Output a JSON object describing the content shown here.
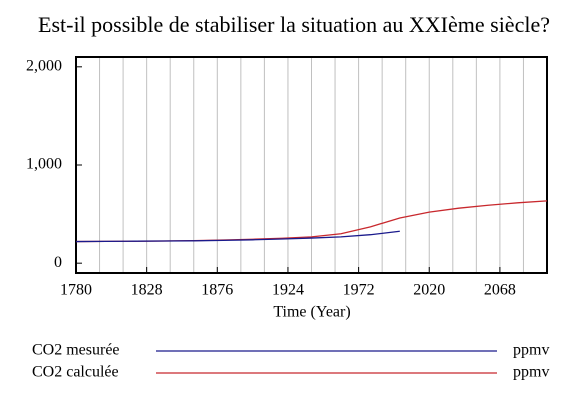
{
  "chart_data": {
    "type": "line",
    "title": "Est-il possible de stabiliser la situation au XXIème siècle?",
    "x_label": "Time (Year)",
    "x": [
      1780,
      1800,
      1820,
      1840,
      1860,
      1880,
      1900,
      1920,
      1940,
      1960,
      1980,
      2000,
      2020,
      2040,
      2060,
      2080,
      2100
    ],
    "series": [
      {
        "name": "CO2 mesurée",
        "unit": "ppmv",
        "color": "#1a1a8c",
        "values": [
          220,
          222,
          224,
          226,
          228,
          232,
          238,
          246,
          256,
          268,
          290,
          325,
          null,
          null,
          null,
          null,
          null
        ]
      },
      {
        "name": "CO2 calculée",
        "unit": "ppmv",
        "color": "#c8282d",
        "values": [
          220,
          222,
          224,
          226,
          230,
          236,
          244,
          254,
          268,
          300,
          370,
          460,
          520,
          560,
          590,
          615,
          635
        ]
      }
    ],
    "xlim": [
      1780,
      2100
    ],
    "xticks": [
      1780,
      1828,
      1876,
      1924,
      1972,
      2020,
      2068
    ],
    "xgrid": [
      1780,
      1796,
      1812,
      1828,
      1844,
      1860,
      1876,
      1892,
      1908,
      1924,
      1940,
      1956,
      1972,
      1988,
      2004,
      2020,
      2036,
      2052,
      2068,
      2084,
      2100
    ],
    "ylim": [
      -100,
      2100
    ],
    "yticks": [
      {
        "value": 0,
        "label": "0"
      },
      {
        "value": 1000,
        "label": "1,000"
      },
      {
        "value": 2000,
        "label": "2,000"
      }
    ],
    "grid": true
  }
}
